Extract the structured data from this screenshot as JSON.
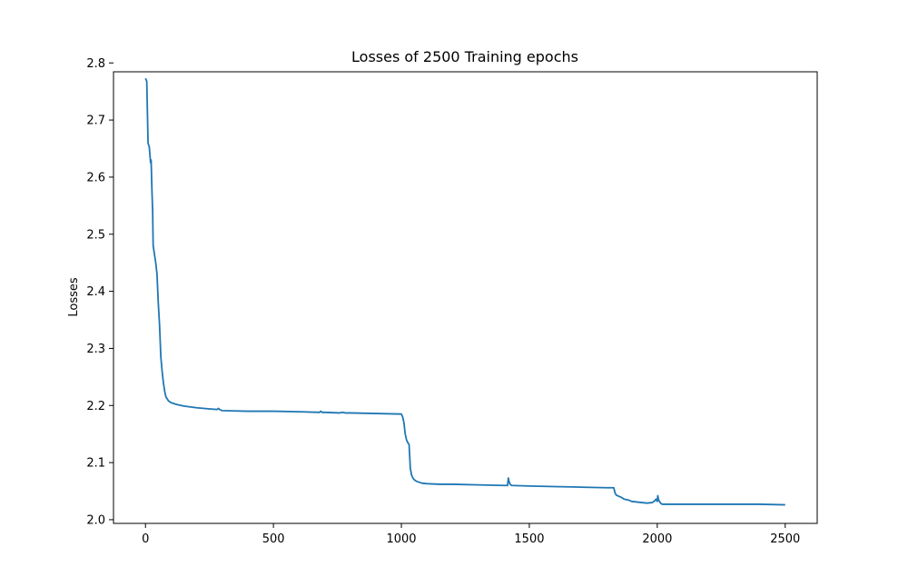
{
  "chart_data": {
    "type": "line",
    "title": "Losses of 2500 Training epochs",
    "xlabel": "",
    "ylabel": "Losses",
    "xlim": [
      -125,
      2625
    ],
    "ylim": [
      1.9935,
      2.7845
    ],
    "xticks": [
      0,
      500,
      1000,
      1500,
      2000,
      2500
    ],
    "xtick_labels": [
      "0",
      "500",
      "1000",
      "1500",
      "2000",
      "2500"
    ],
    "yticks": [
      2.0,
      2.1,
      2.2,
      2.3,
      2.4,
      2.5,
      2.6,
      2.7,
      2.8
    ],
    "ytick_labels": [
      "2.0",
      "2.1",
      "2.2",
      "2.3",
      "2.4",
      "2.5",
      "2.6",
      "2.7",
      "2.8"
    ],
    "grid": false,
    "line_color": "#1f77b4",
    "series": [
      {
        "x": [
          0,
          5,
          10,
          15,
          20,
          22,
          25,
          28,
          30,
          35,
          40,
          45,
          50,
          55,
          60,
          65,
          70,
          75,
          80,
          90,
          100,
          120,
          150,
          200,
          250,
          280,
          285,
          290,
          300,
          400,
          500,
          600,
          680,
          685,
          690,
          700,
          760,
          770,
          780,
          800,
          900,
          1000,
          1005,
          1010,
          1015,
          1020,
          1025,
          1030,
          1035,
          1040,
          1045,
          1050,
          1060,
          1080,
          1100,
          1150,
          1200,
          1300,
          1400,
          1415,
          1418,
          1420,
          1425,
          1430,
          1500,
          1600,
          1700,
          1800,
          1830,
          1835,
          1840,
          1850,
          1860,
          1870,
          1880,
          1890,
          1900,
          1920,
          1940,
          1960,
          1980,
          1990,
          1995,
          2000,
          2002,
          2005,
          2010,
          2015,
          2020,
          2030,
          2050,
          2100,
          2200,
          2300,
          2400,
          2500
        ],
        "y": [
          2.773,
          2.768,
          2.66,
          2.652,
          2.625,
          2.63,
          2.58,
          2.54,
          2.48,
          2.465,
          2.45,
          2.43,
          2.38,
          2.34,
          2.285,
          2.26,
          2.24,
          2.225,
          2.215,
          2.208,
          2.205,
          2.202,
          2.199,
          2.196,
          2.194,
          2.193,
          2.195,
          2.193,
          2.191,
          2.19,
          2.19,
          2.189,
          2.188,
          2.19,
          2.188,
          2.188,
          2.187,
          2.188,
          2.187,
          2.187,
          2.186,
          2.185,
          2.18,
          2.17,
          2.15,
          2.14,
          2.135,
          2.132,
          2.09,
          2.078,
          2.073,
          2.07,
          2.067,
          2.064,
          2.063,
          2.062,
          2.062,
          2.061,
          2.06,
          2.06,
          2.073,
          2.068,
          2.062,
          2.06,
          2.059,
          2.058,
          2.057,
          2.056,
          2.056,
          2.047,
          2.043,
          2.041,
          2.039,
          2.036,
          2.035,
          2.034,
          2.032,
          2.031,
          2.03,
          2.029,
          2.03,
          2.033,
          2.036,
          2.032,
          2.042,
          2.035,
          2.031,
          2.028,
          2.027,
          2.027,
          2.027,
          2.027,
          2.027,
          2.027,
          2.027,
          2.026
        ]
      }
    ]
  }
}
